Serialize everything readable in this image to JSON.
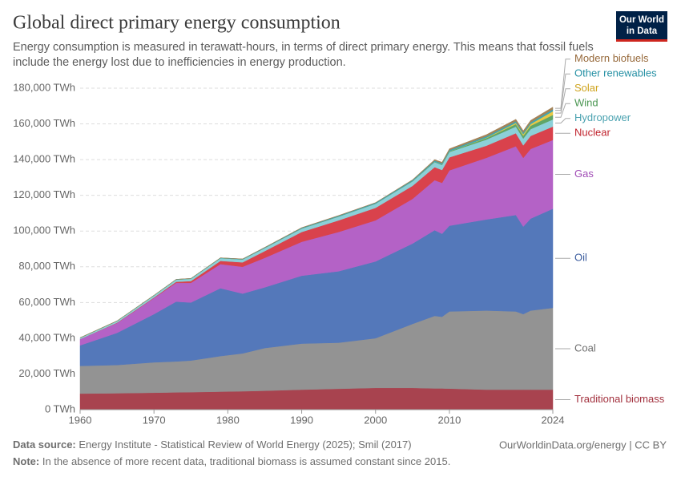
{
  "chart_data": {
    "type": "stacked_area",
    "title": "Global direct primary energy consumption",
    "subtitle": "Energy consumption is measured in terawatt-hours, in terms of direct primary energy. This means that fossil fuels include the energy lost due to inefficiencies in energy production.",
    "logo": [
      "Our World",
      "in Data"
    ],
    "x": [
      1960,
      1965,
      1970,
      1973,
      1975,
      1979,
      1982,
      1985,
      1990,
      1995,
      2000,
      2005,
      2008,
      2009,
      2010,
      2015,
      2019,
      2020,
      2021,
      2024
    ],
    "xlim": [
      1960,
      2024
    ],
    "xticks": [
      1960,
      1970,
      1980,
      1990,
      2000,
      2010,
      2024
    ],
    "ylim": [
      0,
      180000
    ],
    "yticks": [
      {
        "value": 0,
        "label": "0 TWh"
      },
      {
        "value": 20000,
        "label": "20,000 TWh"
      },
      {
        "value": 40000,
        "label": "40,000 TWh"
      },
      {
        "value": 60000,
        "label": "60,000 TWh"
      },
      {
        "value": 80000,
        "label": "80,000 TWh"
      },
      {
        "value": 100000,
        "label": "100,000 TWh"
      },
      {
        "value": 120000,
        "label": "120,000 TWh"
      },
      {
        "value": 140000,
        "label": "140,000 TWh"
      },
      {
        "value": 160000,
        "label": "160,000 TWh"
      },
      {
        "value": 180000,
        "label": "180,000 TWh"
      }
    ],
    "grid": true,
    "series": [
      {
        "name": "Traditional biomass",
        "color": "#a8434f",
        "label_color": "#a2303d",
        "values": [
          9000,
          9200,
          9500,
          9700,
          9800,
          10100,
          10300,
          10600,
          11200,
          11700,
          12200,
          12200,
          11900,
          11900,
          11800,
          11200,
          11200,
          11200,
          11200,
          11200
        ]
      },
      {
        "name": "Coal",
        "color": "#939393",
        "label_color": "#6e6e6e",
        "values": [
          15500,
          15800,
          17000,
          17300,
          17700,
          19900,
          21200,
          23900,
          25800,
          25800,
          27800,
          35800,
          40600,
          40100,
          43200,
          44300,
          43800,
          42300,
          44300,
          45800
        ]
      },
      {
        "name": "Oil",
        "color": "#5478ba",
        "label_color": "#3b5c9e",
        "values": [
          11500,
          18000,
          27000,
          33500,
          32500,
          38000,
          33500,
          34000,
          38000,
          40000,
          43000,
          45000,
          48000,
          46500,
          48000,
          51000,
          54000,
          49000,
          51500,
          55500
        ]
      },
      {
        "name": "Gas",
        "color": "#b462c6",
        "label_color": "#a04bb5",
        "values": [
          3500,
          5500,
          9000,
          10500,
          11000,
          13500,
          15000,
          16500,
          19000,
          22000,
          23000,
          25000,
          28000,
          28500,
          31000,
          34500,
          38500,
          38500,
          39000,
          38500
        ]
      },
      {
        "name": "Nuclear",
        "color": "#d9424c",
        "label_color": "#c0232d",
        "values": [
          0,
          200,
          300,
          600,
          1000,
          1800,
          2500,
          3800,
          5500,
          6500,
          7000,
          7300,
          7300,
          7200,
          7300,
          6800,
          7300,
          7000,
          7300,
          7500
        ]
      },
      {
        "name": "Hydropower",
        "color": "#8cd0d8",
        "label_color": "#4aa2b0",
        "values": [
          700,
          900,
          1100,
          1200,
          1300,
          1500,
          1600,
          1700,
          1900,
          2100,
          2300,
          2500,
          2800,
          2800,
          3000,
          3400,
          3700,
          3800,
          3800,
          4000
        ]
      },
      {
        "name": "Wind",
        "color": "#5fa567",
        "label_color": "#4a9652",
        "values": [
          0,
          0,
          0,
          0,
          0,
          0,
          0,
          0,
          10,
          10,
          30,
          100,
          200,
          280,
          350,
          830,
          1400,
          1600,
          1850,
          2500
        ]
      },
      {
        "name": "Solar",
        "color": "#e8c845",
        "label_color": "#cfa41e",
        "values": [
          0,
          0,
          0,
          0,
          0,
          0,
          0,
          0,
          0,
          0,
          0,
          10,
          20,
          25,
          30,
          250,
          700,
          850,
          1000,
          2100
        ]
      },
      {
        "name": "Other renewables",
        "color": "#3aa6b6",
        "label_color": "#2590a4",
        "values": [
          100,
          120,
          150,
          170,
          180,
          220,
          260,
          300,
          380,
          450,
          500,
          560,
          620,
          650,
          680,
          800,
          880,
          900,
          930,
          1000
        ]
      },
      {
        "name": "Modern biofuels",
        "color": "#a48358",
        "label_color": "#976a3c",
        "values": [
          0,
          0,
          0,
          0,
          0,
          10,
          50,
          100,
          150,
          180,
          120,
          250,
          550,
          600,
          700,
          900,
          1100,
          1000,
          1100,
          1300
        ]
      }
    ],
    "source_label": "Data source:",
    "source": "Energy Institute - Statistical Review of World Energy (2025); Smil (2017)",
    "credit": "OurWorldinData.org/energy | CC BY",
    "note_label": "Note:",
    "note": "In the absence of more recent data, traditional biomass is assumed constant since 2015."
  }
}
